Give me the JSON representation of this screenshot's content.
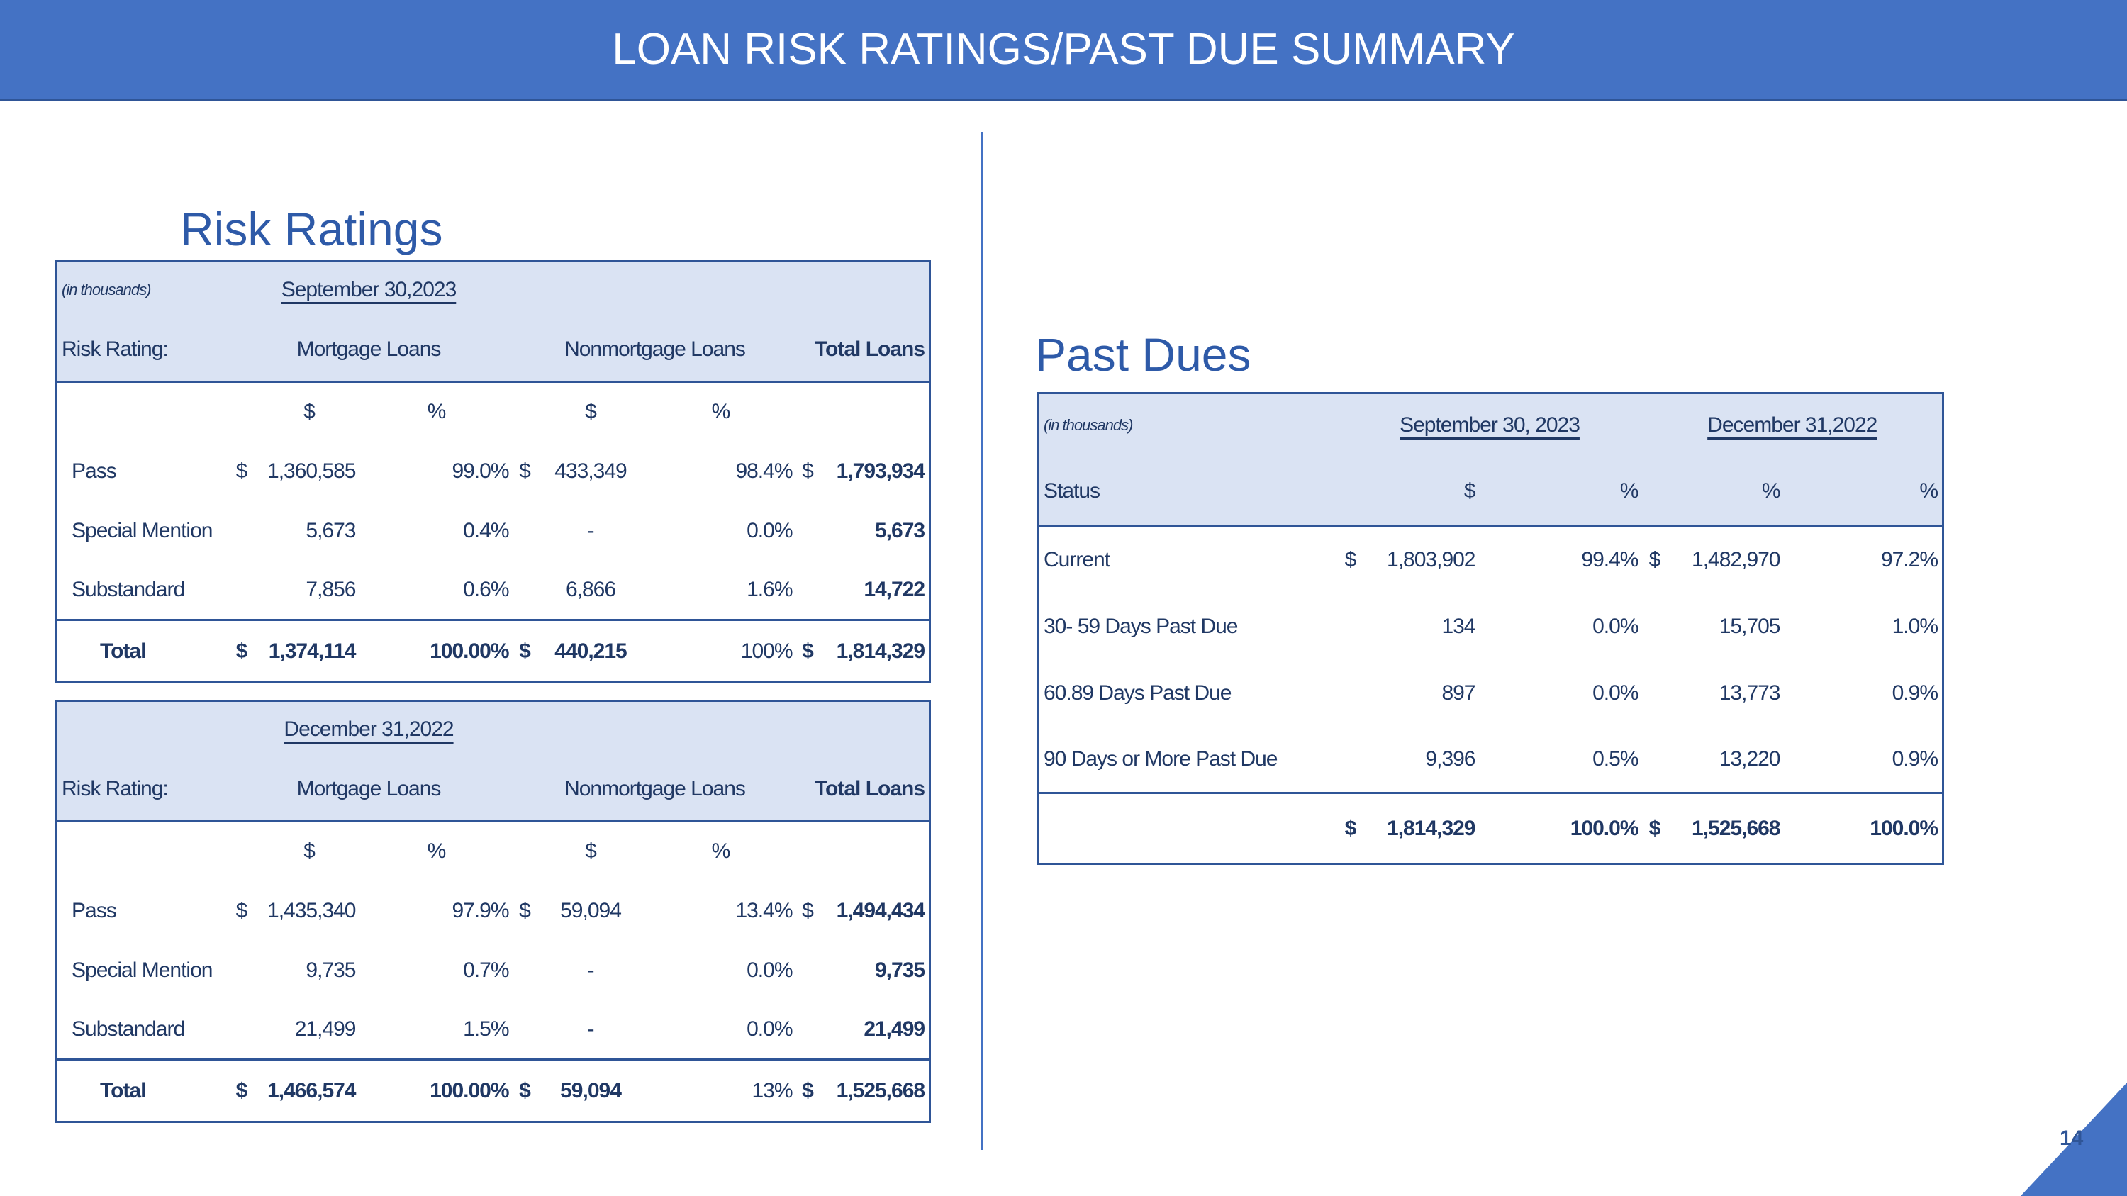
{
  "header": {
    "title": "LOAN RISK RATINGS/PAST DUE SUMMARY"
  },
  "risk_ratings": {
    "title": "Risk Ratings",
    "tables": [
      {
        "note": "(in thousands)",
        "date": "September 30,2023",
        "columns": [
          "Risk Rating:",
          "Mortgage Loans",
          "Nonmortgage Loans",
          "Total Loans"
        ],
        "units": [
          "$",
          "%",
          "$",
          "%"
        ],
        "rows": [
          [
            "Pass",
            "$",
            "1,360,585",
            "99.0%",
            "$",
            "433,349",
            "98.4%",
            "$",
            "1,793,934"
          ],
          [
            "Special Mention",
            null,
            "5,673",
            "0.4%",
            null,
            "-",
            "0.0%",
            null,
            "5,673"
          ],
          [
            "Substandard",
            null,
            "7,856",
            "0.6%",
            null,
            "6,866",
            "1.6%",
            null,
            "14,722"
          ]
        ],
        "total": [
          "Total",
          "$",
          "1,374,114",
          "100.00%",
          "$",
          "440,215",
          "100%",
          "$",
          "1,814,329"
        ]
      },
      {
        "date": "December 31,2022",
        "columns": [
          "Risk Rating:",
          "Mortgage Loans",
          "Nonmortgage Loans",
          "Total Loans"
        ],
        "units": [
          "$",
          "%",
          "$",
          "%"
        ],
        "rows": [
          [
            "Pass",
            "$",
            "1,435,340",
            "97.9%",
            "$",
            "59,094",
            "13.4%",
            "$",
            "1,494,434"
          ],
          [
            "Special Mention",
            null,
            "9,735",
            "0.7%",
            null,
            "-",
            "0.0%",
            null,
            "9,735"
          ],
          [
            "Substandard",
            null,
            "21,499",
            "1.5%",
            null,
            "-",
            "0.0%",
            null,
            "21,499"
          ]
        ],
        "total": [
          "Total",
          "$",
          "1,466,574",
          "100.00%",
          "$",
          "59,094",
          "13%",
          "$",
          "1,525,668"
        ]
      }
    ]
  },
  "past_dues": {
    "title": "Past Dues",
    "table": {
      "note": "(in thousands)",
      "dates": [
        "September 30, 2023",
        "December 31,2022"
      ],
      "columns": [
        "Status",
        "$",
        "%",
        "%",
        "%"
      ],
      "rows": [
        [
          "Current",
          "$",
          "1,803,902",
          "99.4%",
          "$",
          "1,482,970",
          "97.2%"
        ],
        [
          "30- 59 Days Past Due",
          null,
          "134",
          "0.0%",
          null,
          "15,705",
          "1.0%"
        ],
        [
          "60.89 Days Past Due",
          null,
          "897",
          "0.0%",
          null,
          "13,773",
          "0.9%"
        ],
        [
          "90 Days or More Past Due",
          null,
          "9,396",
          "0.5%",
          null,
          "13,220",
          "0.9%"
        ]
      ],
      "total": [
        null,
        "$",
        "1,814,329",
        "100.0%",
        "$",
        "1,525,668",
        "100.0%"
      ]
    }
  },
  "page_number": "14"
}
